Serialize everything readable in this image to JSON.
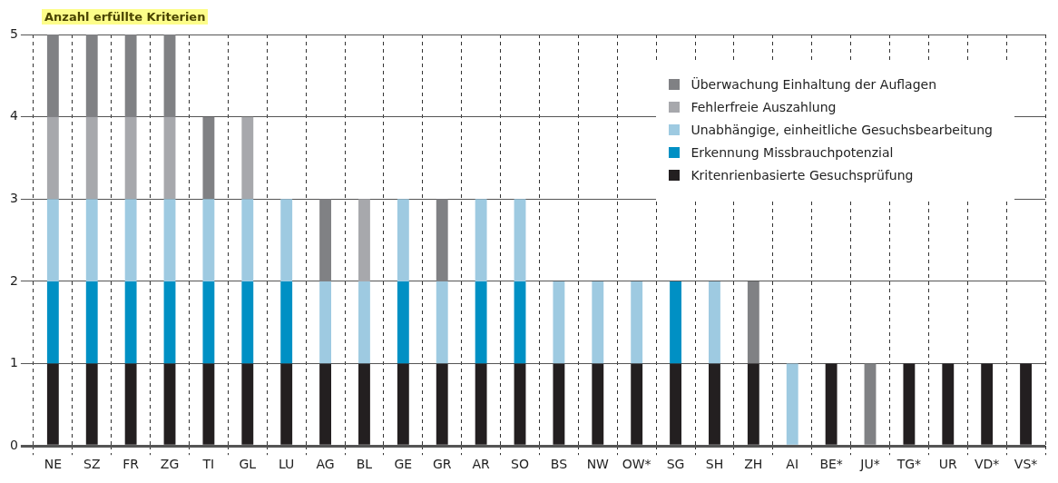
{
  "chart_data": {
    "type": "bar",
    "ylabel": "Anzahl erfüllte Kriterien",
    "categories": [
      "NE",
      "SZ",
      "FR",
      "ZG",
      "TI",
      "GL",
      "LU",
      "AG",
      "BL",
      "GE",
      "GR",
      "AR",
      "SO",
      "BS",
      "NW",
      "OW*",
      "SG",
      "SH",
      "ZH",
      "AI",
      "BE*",
      "JU*",
      "TG*",
      "UR",
      "VD*",
      "VS*"
    ],
    "stacked": true,
    "series": [
      {
        "name": "Kritenrienbasierte Gesuchsprüfung",
        "color": "#231f20",
        "values": [
          1,
          1,
          1,
          1,
          1,
          1,
          1,
          1,
          1,
          1,
          1,
          1,
          1,
          1,
          1,
          1,
          1,
          1,
          1,
          0,
          1,
          0,
          1,
          1,
          1,
          1
        ]
      },
      {
        "name": "Erkennung Missbrauchpotenzial",
        "color": "#0090c4",
        "values": [
          1,
          1,
          1,
          1,
          1,
          1,
          1,
          0,
          0,
          1,
          0,
          1,
          1,
          0,
          0,
          0,
          1,
          0,
          0,
          0,
          0,
          0,
          0,
          0,
          0,
          0
        ]
      },
      {
        "name": "Unabhängige, einheitliche Gesuchsbearbeitung",
        "color": "#9ecae1",
        "values": [
          1,
          1,
          1,
          1,
          1,
          1,
          1,
          1,
          1,
          1,
          1,
          1,
          1,
          1,
          1,
          1,
          0,
          1,
          0,
          1,
          0,
          0,
          0,
          0,
          0,
          0
        ]
      },
      {
        "name": "Fehlerfreie Auszahlung",
        "color": "#a7a8ac",
        "values": [
          1,
          1,
          1,
          1,
          0,
          1,
          0,
          0,
          1,
          0,
          0,
          0,
          0,
          0,
          0,
          0,
          0,
          0,
          0,
          0,
          0,
          0,
          0,
          0,
          0,
          0
        ]
      },
      {
        "name": "Überwachung Einhaltung der Auflagen",
        "color": "#808184",
        "values": [
          1,
          1,
          1,
          1,
          1,
          0,
          0,
          1,
          0,
          0,
          1,
          0,
          0,
          0,
          0,
          0,
          0,
          0,
          1,
          0,
          0,
          1,
          0,
          0,
          0,
          0
        ]
      }
    ],
    "ylim": [
      0,
      5
    ],
    "yticks": [
      0,
      1,
      2,
      3,
      4,
      5
    ],
    "grid": true,
    "legend": "top right"
  }
}
